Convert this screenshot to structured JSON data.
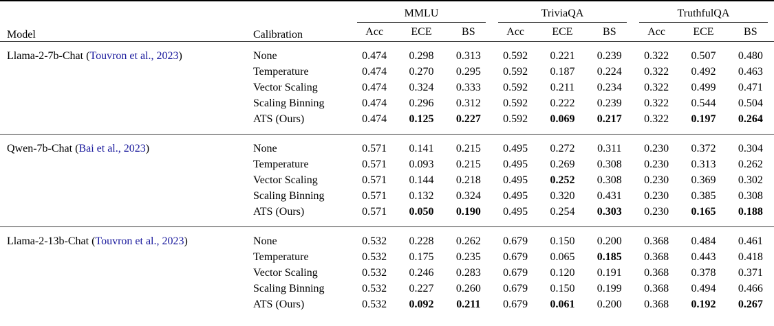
{
  "table": {
    "link_color": "#16169b",
    "headers": {
      "model": "Model",
      "calibration": "Calibration"
    },
    "groups": [
      "MMLU",
      "TriviaQA",
      "TruthfulQA"
    ],
    "metric_labels": [
      "Acc",
      "ECE",
      "BS"
    ],
    "blocks": [
      {
        "model": "Llama-2-7b-Chat",
        "citation": "Touvron et al., 2023",
        "rows": [
          {
            "method": "None",
            "values": [
              "0.474",
              "0.298",
              "0.313",
              "0.592",
              "0.221",
              "0.239",
              "0.322",
              "0.507",
              "0.480"
            ],
            "bold": [
              false,
              false,
              false,
              false,
              false,
              false,
              false,
              false,
              false
            ]
          },
          {
            "method": "Temperature",
            "values": [
              "0.474",
              "0.270",
              "0.295",
              "0.592",
              "0.187",
              "0.224",
              "0.322",
              "0.492",
              "0.463"
            ],
            "bold": [
              false,
              false,
              false,
              false,
              false,
              false,
              false,
              false,
              false
            ]
          },
          {
            "method": "Vector Scaling",
            "values": [
              "0.474",
              "0.324",
              "0.333",
              "0.592",
              "0.211",
              "0.234",
              "0.322",
              "0.499",
              "0.471"
            ],
            "bold": [
              false,
              false,
              false,
              false,
              false,
              false,
              false,
              false,
              false
            ]
          },
          {
            "method": "Scaling Binning",
            "values": [
              "0.474",
              "0.296",
              "0.312",
              "0.592",
              "0.222",
              "0.239",
              "0.322",
              "0.544",
              "0.504"
            ],
            "bold": [
              false,
              false,
              false,
              false,
              false,
              false,
              false,
              false,
              false
            ]
          },
          {
            "method": "ATS (Ours)",
            "values": [
              "0.474",
              "0.125",
              "0.227",
              "0.592",
              "0.069",
              "0.217",
              "0.322",
              "0.197",
              "0.264"
            ],
            "bold": [
              false,
              true,
              true,
              false,
              true,
              true,
              false,
              true,
              true
            ]
          }
        ]
      },
      {
        "model": "Qwen-7b-Chat",
        "citation": "Bai et al., 2023",
        "rows": [
          {
            "method": "None",
            "values": [
              "0.571",
              "0.141",
              "0.215",
              "0.495",
              "0.272",
              "0.311",
              "0.230",
              "0.372",
              "0.304"
            ],
            "bold": [
              false,
              false,
              false,
              false,
              false,
              false,
              false,
              false,
              false
            ]
          },
          {
            "method": "Temperature",
            "values": [
              "0.571",
              "0.093",
              "0.215",
              "0.495",
              "0.269",
              "0.308",
              "0.230",
              "0.313",
              "0.262"
            ],
            "bold": [
              false,
              false,
              false,
              false,
              false,
              false,
              false,
              false,
              false
            ]
          },
          {
            "method": "Vector Scaling",
            "values": [
              "0.571",
              "0.144",
              "0.218",
              "0.495",
              "0.252",
              "0.308",
              "0.230",
              "0.369",
              "0.302"
            ],
            "bold": [
              false,
              false,
              false,
              false,
              true,
              false,
              false,
              false,
              false
            ]
          },
          {
            "method": "Scaling Binning",
            "values": [
              "0.571",
              "0.132",
              "0.324",
              "0.495",
              "0.320",
              "0.431",
              "0.230",
              "0.385",
              "0.308"
            ],
            "bold": [
              false,
              false,
              false,
              false,
              false,
              false,
              false,
              false,
              false
            ]
          },
          {
            "method": "ATS (Ours)",
            "values": [
              "0.571",
              "0.050",
              "0.190",
              "0.495",
              "0.254",
              "0.303",
              "0.230",
              "0.165",
              "0.188"
            ],
            "bold": [
              false,
              true,
              true,
              false,
              false,
              true,
              false,
              true,
              true
            ]
          }
        ]
      },
      {
        "model": "Llama-2-13b-Chat",
        "citation": "Touvron et al., 2023",
        "rows": [
          {
            "method": "None",
            "values": [
              "0.532",
              "0.228",
              "0.262",
              "0.679",
              "0.150",
              "0.200",
              "0.368",
              "0.484",
              "0.461"
            ],
            "bold": [
              false,
              false,
              false,
              false,
              false,
              false,
              false,
              false,
              false
            ]
          },
          {
            "method": "Temperature",
            "values": [
              "0.532",
              "0.175",
              "0.235",
              "0.679",
              "0.065",
              "0.185",
              "0.368",
              "0.443",
              "0.418"
            ],
            "bold": [
              false,
              false,
              false,
              false,
              false,
              true,
              false,
              false,
              false
            ]
          },
          {
            "method": "Vector Scaling",
            "values": [
              "0.532",
              "0.246",
              "0.283",
              "0.679",
              "0.120",
              "0.191",
              "0.368",
              "0.378",
              "0.371"
            ],
            "bold": [
              false,
              false,
              false,
              false,
              false,
              false,
              false,
              false,
              false
            ]
          },
          {
            "method": "Scaling Binning",
            "values": [
              "0.532",
              "0.227",
              "0.260",
              "0.679",
              "0.150",
              "0.199",
              "0.368",
              "0.494",
              "0.466"
            ],
            "bold": [
              false,
              false,
              false,
              false,
              false,
              false,
              false,
              false,
              false
            ]
          },
          {
            "method": "ATS (Ours)",
            "values": [
              "0.532",
              "0.092",
              "0.211",
              "0.679",
              "0.061",
              "0.200",
              "0.368",
              "0.192",
              "0.267"
            ],
            "bold": [
              false,
              true,
              true,
              false,
              true,
              false,
              false,
              true,
              true
            ]
          }
        ]
      }
    ]
  }
}
